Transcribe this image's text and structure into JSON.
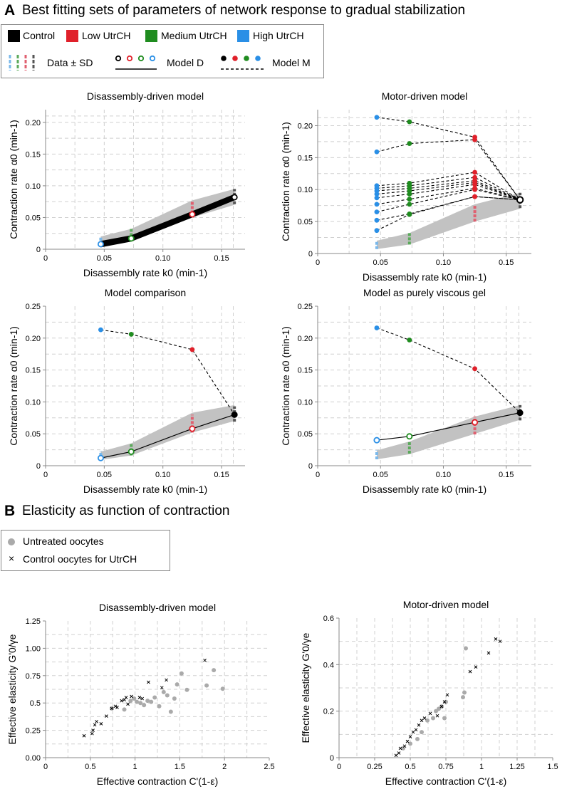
{
  "panelA": {
    "letter": "A",
    "title": "Best fitting sets of parameters of network response to gradual stabilization",
    "legend": {
      "control": "Control",
      "low": "Low UtrCH",
      "medium": "Medium UtrCH",
      "high": "High UtrCH",
      "data_sd": "Data ± SD",
      "model_d": "Model D",
      "model_m": "Model M"
    }
  },
  "panelB": {
    "letter": "B",
    "title": "Elasticity as function of contraction",
    "legend": {
      "untreated": "Untreated oocytes",
      "control": "Control oocytes for UtrCH"
    }
  },
  "colors": {
    "control": "#000000",
    "low": "#e0202a",
    "medium": "#1f8c1f",
    "high": "#2a8fe6",
    "band": "#c2c2c2",
    "lowData": "#e06070",
    "mediumData": "#5caa5c",
    "highData": "#7ab8ea",
    "controlData": "#555555",
    "grey": "#aaaaaa"
  },
  "chart_data": [
    {
      "type": "line",
      "title": "Disassembly-driven model",
      "xlabel": "Disassembly rate k0 (min-1)",
      "ylabel": "Contraction rate α0 (min-1)",
      "xlim": [
        0,
        0.17
      ],
      "ylim": [
        0,
        0.22
      ],
      "xticks": [
        "0",
        "0.05",
        "0.10",
        "0.15"
      ],
      "yticks": [
        "0",
        "0.05",
        "0.10",
        "0.15",
        "0.20"
      ],
      "grid": true,
      "data_sd": [
        {
          "group": "High UtrCH",
          "x": 0.047,
          "y": 0.0135,
          "sd": 0.0065
        },
        {
          "group": "Medium UtrCH",
          "x": 0.073,
          "y": 0.023,
          "sd": 0.009
        },
        {
          "group": "Low UtrCH",
          "x": 0.125,
          "y": 0.063,
          "sd": 0.013
        },
        {
          "group": "Control",
          "x": 0.161,
          "y": 0.083,
          "sd": 0.012
        }
      ],
      "band": {
        "x": [
          0.047,
          0.073,
          0.125,
          0.161
        ],
        "lower": [
          0.007,
          0.014,
          0.05,
          0.07
        ],
        "upper": [
          0.02,
          0.032,
          0.077,
          0.095
        ]
      },
      "model_d": {
        "x": [
          0.047,
          0.073,
          0.125,
          0.161
        ],
        "y": [
          0.008,
          0.017,
          0.055,
          0.082
        ],
        "line_bundle_width": 0.01
      },
      "model_m": []
    },
    {
      "type": "line",
      "title": "Motor-driven model",
      "xlabel": "Disassembly rate k0 (min-1)",
      "ylabel": "Contraction rate α0 (min-1)",
      "xlim": [
        0,
        0.17
      ],
      "ylim": [
        0,
        0.225
      ],
      "xticks": [
        "0",
        "0.05",
        "0.10",
        "0.15"
      ],
      "yticks": [
        "0",
        "0.05",
        "0.10",
        "0.15",
        "0.20"
      ],
      "grid": true,
      "data_sd": [
        {
          "group": "High UtrCH",
          "x": 0.047,
          "y": 0.0135,
          "sd": 0.0065
        },
        {
          "group": "Medium UtrCH",
          "x": 0.073,
          "y": 0.023,
          "sd": 0.009
        },
        {
          "group": "Low UtrCH",
          "x": 0.125,
          "y": 0.063,
          "sd": 0.013
        },
        {
          "group": "Control",
          "x": 0.161,
          "y": 0.083,
          "sd": 0.012
        }
      ],
      "band": {
        "x": [
          0.047,
          0.073,
          0.125,
          0.161
        ],
        "lower": [
          0.007,
          0.014,
          0.05,
          0.07
        ],
        "upper": [
          0.02,
          0.032,
          0.077,
          0.095
        ]
      },
      "model_d": null,
      "model_m": [
        {
          "x": [
            0.047,
            0.073,
            0.125,
            0.161
          ],
          "y": [
            0.213,
            0.206,
            0.182,
            0.084
          ]
        },
        {
          "x": [
            0.047,
            0.073,
            0.125,
            0.161
          ],
          "y": [
            0.159,
            0.172,
            0.178,
            0.084
          ]
        },
        {
          "x": [
            0.047,
            0.073,
            0.125,
            0.161
          ],
          "y": [
            0.106,
            0.11,
            0.127,
            0.084
          ]
        },
        {
          "x": [
            0.047,
            0.073,
            0.125,
            0.161
          ],
          "y": [
            0.102,
            0.106,
            0.119,
            0.084
          ]
        },
        {
          "x": [
            0.047,
            0.073,
            0.125,
            0.161
          ],
          "y": [
            0.098,
            0.102,
            0.114,
            0.084
          ]
        },
        {
          "x": [
            0.047,
            0.073,
            0.125,
            0.161
          ],
          "y": [
            0.093,
            0.098,
            0.111,
            0.084
          ]
        },
        {
          "x": [
            0.047,
            0.073,
            0.125,
            0.161
          ],
          "y": [
            0.087,
            0.093,
            0.108,
            0.084
          ]
        },
        {
          "x": [
            0.047,
            0.073,
            0.125,
            0.161
          ],
          "y": [
            0.077,
            0.085,
            0.102,
            0.084
          ]
        },
        {
          "x": [
            0.047,
            0.073,
            0.125,
            0.161
          ],
          "y": [
            0.065,
            0.077,
            0.1,
            0.084
          ]
        },
        {
          "x": [
            0.047,
            0.073,
            0.125,
            0.161
          ],
          "y": [
            0.052,
            0.062,
            0.089,
            0.084
          ]
        },
        {
          "x": [
            0.047,
            0.073,
            0.125,
            0.161
          ],
          "y": [
            0.036,
            0.061,
            0.089,
            0.084
          ]
        }
      ]
    },
    {
      "type": "line",
      "title": "Model comparison",
      "xlabel": "Disassembly rate k0 (min-1)",
      "ylabel": "Contraction rate α0 (min-1)",
      "xlim": [
        0,
        0.17
      ],
      "ylim": [
        0,
        0.25
      ],
      "xticks": [
        "0",
        "0.05",
        "0.10",
        "0.15"
      ],
      "yticks": [
        "0",
        "0.05",
        "0.10",
        "0.15",
        "0.20",
        "0.25"
      ],
      "grid": true,
      "data_sd": [
        {
          "group": "High UtrCH",
          "x": 0.047,
          "y": 0.016,
          "sd": 0.007
        },
        {
          "group": "Medium UtrCH",
          "x": 0.073,
          "y": 0.026,
          "sd": 0.01
        },
        {
          "group": "Low UtrCH",
          "x": 0.125,
          "y": 0.066,
          "sd": 0.014
        },
        {
          "group": "Control",
          "x": 0.161,
          "y": 0.081,
          "sd": 0.012
        }
      ],
      "band": {
        "x": [
          0.047,
          0.073,
          0.125,
          0.161
        ],
        "lower": [
          0.009,
          0.016,
          0.052,
          0.07
        ],
        "upper": [
          0.022,
          0.035,
          0.083,
          0.095
        ]
      },
      "model_d": {
        "x": [
          0.047,
          0.073,
          0.125,
          0.161
        ],
        "y": [
          0.012,
          0.022,
          0.058,
          0.08
        ],
        "line_bundle_width": 0
      },
      "model_m": [
        {
          "x": [
            0.047,
            0.073,
            0.125,
            0.161
          ],
          "y": [
            0.213,
            0.206,
            0.182,
            0.08
          ]
        }
      ]
    },
    {
      "type": "line",
      "title": "Model as purely viscous gel",
      "xlabel": "Disassembly rate k0 (min-1)",
      "ylabel": "Contraction rate α0 (min-1)",
      "xlim": [
        0,
        0.17
      ],
      "ylim": [
        0,
        0.25
      ],
      "xticks": [
        "0",
        "0.05",
        "0.10",
        "0.15"
      ],
      "yticks": [
        "0",
        "0.05",
        "0.10",
        "0.15",
        "0.20",
        "0.25"
      ],
      "grid": true,
      "data_sd": [
        {
          "group": "High UtrCH",
          "x": 0.047,
          "y": 0.017,
          "sd": 0.007
        },
        {
          "group": "Medium UtrCH",
          "x": 0.073,
          "y": 0.029,
          "sd": 0.01
        },
        {
          "group": "Low UtrCH",
          "x": 0.125,
          "y": 0.063,
          "sd": 0.014
        },
        {
          "group": "Control",
          "x": 0.161,
          "y": 0.083,
          "sd": 0.012
        }
      ],
      "band": {
        "x": [
          0.047,
          0.073,
          0.125,
          0.161
        ],
        "lower": [
          0.01,
          0.018,
          0.05,
          0.072
        ],
        "upper": [
          0.024,
          0.038,
          0.077,
          0.095
        ]
      },
      "model_d": {
        "x": [
          0.047,
          0.073,
          0.125,
          0.161
        ],
        "y": [
          0.04,
          0.046,
          0.068,
          0.083
        ],
        "line_bundle_width": 0
      },
      "model_m": [
        {
          "x": [
            0.047,
            0.073,
            0.125,
            0.161
          ],
          "y": [
            0.216,
            0.197,
            0.152,
            0.083
          ]
        }
      ]
    },
    {
      "type": "scatter",
      "title": "Disassembly-driven model",
      "xlabel": "Effective contraction C'(1-ε)",
      "ylabel": "Effective elasticity G'0/γe",
      "xlim": [
        0,
        2.5
      ],
      "ylim": [
        0,
        1.25
      ],
      "xticks": [
        "0",
        "0.5",
        "1",
        "1.5",
        "2",
        "2.5"
      ],
      "yticks": [
        "0.00",
        "0.25",
        "0.5",
        "0.75",
        "1.00",
        "1.25"
      ],
      "grid": true,
      "series": [
        {
          "name": "Untreated oocytes",
          "x": [
            0.74,
            0.88,
            0.95,
            0.99,
            1.02,
            1.06,
            1.1,
            1.14,
            1.18,
            1.22,
            1.27,
            1.32,
            1.36,
            1.4,
            1.44,
            1.47,
            1.52,
            1.58,
            1.8,
            1.88,
            1.98
          ],
          "y": [
            0.45,
            0.44,
            0.52,
            0.54,
            0.51,
            0.5,
            0.48,
            0.52,
            0.51,
            0.55,
            0.47,
            0.6,
            0.57,
            0.42,
            0.54,
            0.67,
            0.77,
            0.62,
            0.66,
            0.8,
            0.63
          ]
        },
        {
          "name": "Control oocytes for UtrCH",
          "x": [
            0.43,
            0.52,
            0.53,
            0.55,
            0.57,
            0.62,
            0.68,
            0.74,
            0.78,
            0.8,
            0.85,
            0.88,
            0.9,
            0.92,
            0.96,
            1.05,
            1.08,
            1.15,
            1.3,
            1.35,
            1.78
          ],
          "y": [
            0.2,
            0.22,
            0.25,
            0.3,
            0.33,
            0.31,
            0.38,
            0.45,
            0.47,
            0.46,
            0.52,
            0.53,
            0.55,
            0.49,
            0.56,
            0.55,
            0.54,
            0.69,
            0.64,
            0.71,
            0.89
          ]
        }
      ]
    },
    {
      "type": "scatter",
      "title": "Motor-driven model",
      "xlabel": "Effective contraction C'(1-ε)",
      "ylabel": "Effective elasticity G'0/γe",
      "xlim": [
        0,
        1.5
      ],
      "ylim": [
        0,
        0.6
      ],
      "xticks": [
        "0",
        "0.25",
        "0.5",
        "0.75",
        "1",
        "1.25",
        "1.5"
      ],
      "yticks": [
        "0",
        "0.2",
        "0.4",
        "0.6"
      ],
      "grid": true,
      "series": [
        {
          "name": "Untreated oocytes",
          "x": [
            0.45,
            0.5,
            0.55,
            0.58,
            0.62,
            0.66,
            0.68,
            0.7,
            0.72,
            0.74,
            0.75,
            0.87,
            0.88,
            0.89
          ],
          "y": [
            0.04,
            0.06,
            0.08,
            0.11,
            0.16,
            0.17,
            0.2,
            0.21,
            0.22,
            0.17,
            0.24,
            0.26,
            0.28,
            0.47
          ]
        },
        {
          "name": "Control oocytes for UtrCH",
          "x": [
            0.4,
            0.42,
            0.43,
            0.46,
            0.48,
            0.5,
            0.52,
            0.54,
            0.56,
            0.58,
            0.6,
            0.64,
            0.69,
            0.72,
            0.74,
            0.76,
            0.92,
            0.96,
            1.05,
            1.1,
            1.13
          ],
          "y": [
            0.01,
            0.02,
            0.04,
            0.05,
            0.07,
            0.09,
            0.11,
            0.12,
            0.14,
            0.16,
            0.17,
            0.19,
            0.18,
            0.22,
            0.24,
            0.27,
            0.37,
            0.39,
            0.45,
            0.51,
            0.5
          ]
        }
      ]
    }
  ]
}
